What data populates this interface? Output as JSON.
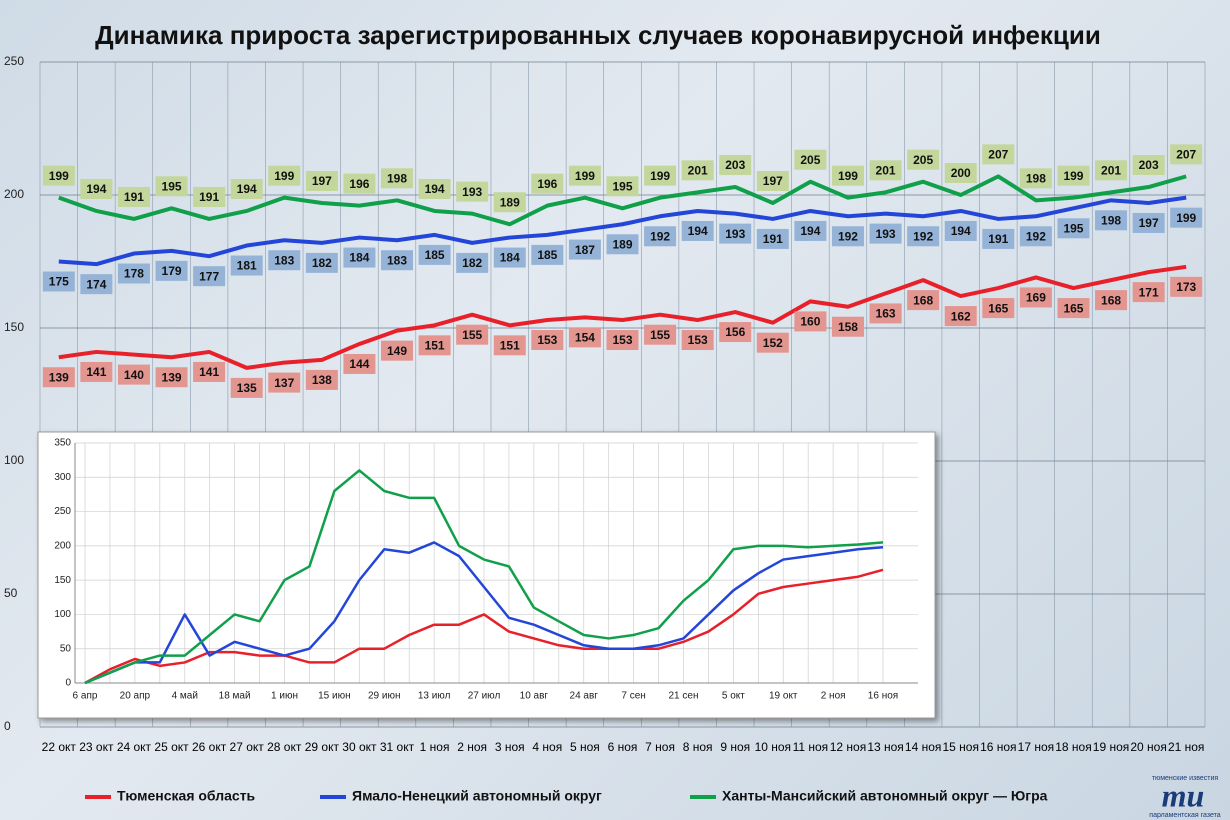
{
  "chart_data": [
    {
      "type": "line",
      "title": "Динамика прироста зарегистрированных случаев коронавирусной инфекции",
      "categories": [
        "22 окт",
        "23 окт",
        "24 окт",
        "25 окт",
        "26 окт",
        "27 окт",
        "28 окт",
        "29 окт",
        "30 окт",
        "31 окт",
        "1 ноя",
        "2 ноя",
        "3 ноя",
        "4 ноя",
        "5 ноя",
        "6 ноя",
        "7 ноя",
        "8 ноя",
        "9 ноя",
        "10 ноя",
        "11 ноя",
        "12 ноя",
        "13 ноя",
        "14 ноя",
        "15 ноя",
        "16 ноя",
        "17 ноя",
        "18 ноя",
        "19 ноя",
        "20 ноя",
        "21 ноя"
      ],
      "series": [
        {
          "name": "Тюменская область",
          "color": "#e8202a",
          "label_color": "#e39590",
          "label_position": "below",
          "values": [
            139,
            141,
            140,
            139,
            141,
            135,
            137,
            138,
            144,
            149,
            151,
            155,
            151,
            153,
            154,
            153,
            155,
            153,
            156,
            152,
            160,
            158,
            163,
            168,
            162,
            165,
            169,
            165,
            168,
            171,
            173
          ]
        },
        {
          "name": "Ямало-Ненецкий автономный округ",
          "color": "#2446d8",
          "label_color": "#95b3d7",
          "label_position": "below",
          "values": [
            175,
            174,
            178,
            179,
            177,
            181,
            183,
            182,
            184,
            183,
            185,
            182,
            184,
            185,
            187,
            189,
            192,
            194,
            193,
            191,
            194,
            192,
            193,
            192,
            194,
            191,
            192,
            195,
            198,
            197,
            199
          ]
        },
        {
          "name": "Ханты-Мансийский автономный округ — Югра",
          "color": "#10a04a",
          "label_color": "#c3d69b",
          "label_position": "above",
          "values": [
            199,
            194,
            191,
            195,
            191,
            194,
            199,
            197,
            196,
            198,
            194,
            193,
            189,
            196,
            199,
            195,
            199,
            201,
            203,
            197,
            205,
            199,
            201,
            205,
            200,
            207,
            198,
            199,
            201,
            203,
            207
          ]
        }
      ],
      "ylim": [
        0,
        250
      ],
      "yticks": [
        0,
        50,
        100,
        150,
        200,
        250
      ],
      "grid": true,
      "data_labels": true,
      "legend": "bottom"
    },
    {
      "type": "line",
      "categories": [
        "6 апр",
        null,
        "20 апр",
        null,
        "4 май",
        null,
        "18 май",
        null,
        "1 июн",
        null,
        "15 июн",
        null,
        "29 июн",
        null,
        "13 июл",
        null,
        "27 июл",
        null,
        "10 авг",
        null,
        "24 авг",
        null,
        "7 сен",
        null,
        "21 сен",
        null,
        "5 окт",
        null,
        "19 окт",
        null,
        "2 ноя",
        null,
        "16 ноя"
      ],
      "series": [
        {
          "name": "Тюменская область",
          "color": "#e8202a",
          "values": [
            0,
            20,
            35,
            25,
            30,
            45,
            45,
            40,
            40,
            30,
            30,
            50,
            50,
            70,
            85,
            85,
            100,
            75,
            65,
            55,
            50,
            50,
            50,
            50,
            60,
            75,
            100,
            130,
            140,
            145,
            150,
            155,
            165
          ]
        },
        {
          "name": "Ямало-Ненецкий автономный округ",
          "color": "#2446d8",
          "values": [
            0,
            15,
            30,
            30,
            100,
            40,
            60,
            50,
            40,
            50,
            90,
            150,
            195,
            190,
            205,
            185,
            140,
            95,
            85,
            70,
            55,
            50,
            50,
            55,
            65,
            100,
            135,
            160,
            180,
            185,
            190,
            195,
            198
          ]
        },
        {
          "name": "Ханты-Мансийский автономный округ — Югра",
          "color": "#10a04a",
          "values": [
            0,
            15,
            30,
            40,
            40,
            70,
            100,
            90,
            150,
            170,
            280,
            310,
            280,
            270,
            270,
            200,
            180,
            170,
            110,
            90,
            70,
            65,
            70,
            80,
            120,
            150,
            195,
            200,
            200,
            198,
            200,
            202,
            205
          ]
        }
      ],
      "ylim": [
        0,
        350
      ],
      "yticks": [
        0,
        50,
        100,
        150,
        200,
        250,
        300,
        350
      ],
      "grid": true
    }
  ],
  "logo": {
    "top": "тюменские известия",
    "mark": "mu",
    "bottom": "парламентская газета"
  }
}
